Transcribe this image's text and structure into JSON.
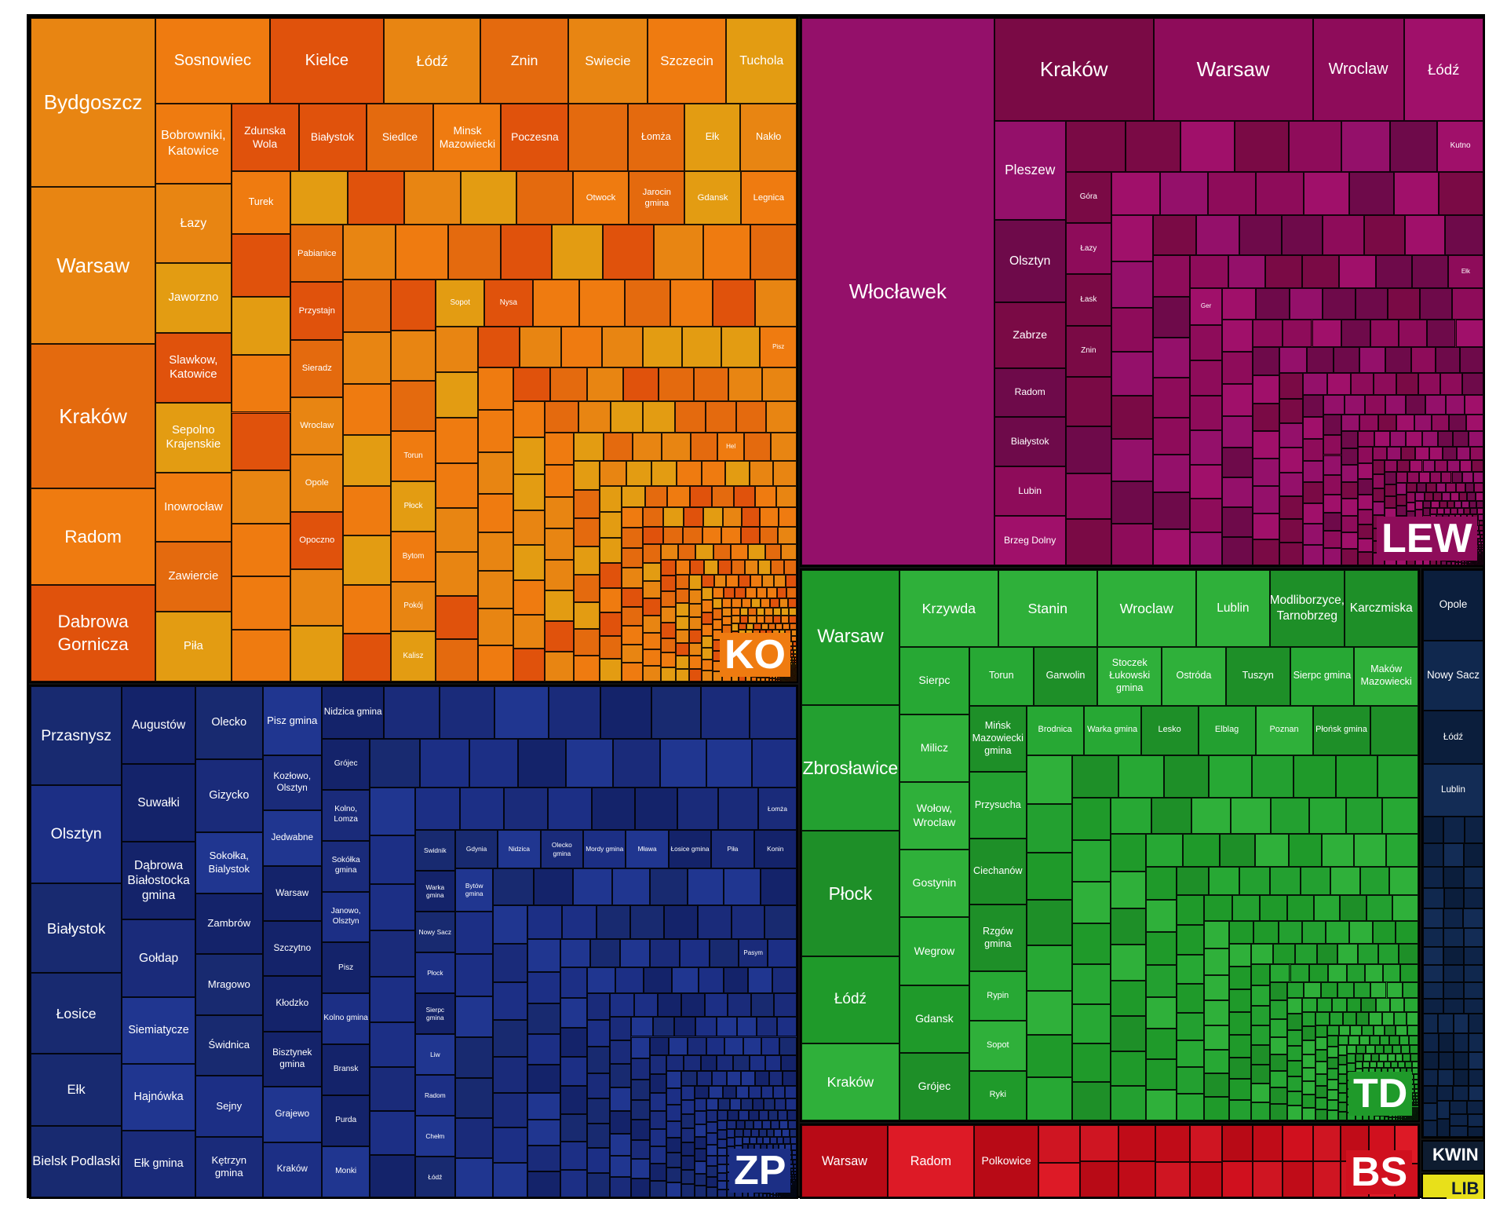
{
  "chart_data": {
    "type": "treemap",
    "title": "",
    "groups": [
      {
        "code": "KO",
        "colors": [
          "#e0520c",
          "#e46a0e",
          "#e88512",
          "#e39c12",
          "#ef7b10"
        ],
        "labels": [
          {
            "name": "Bydgoszcz",
            "size": 28
          },
          {
            "name": "Warsaw",
            "size": 26
          },
          {
            "name": "Kraków",
            "size": 24
          },
          {
            "name": "Radom",
            "size": 16
          },
          {
            "name": "Dabrowa Gornicza",
            "size": 16
          },
          {
            "name": "Sosnowiec",
            "size": 13
          },
          {
            "name": "Kielce",
            "size": 13
          },
          {
            "name": "Łódź",
            "size": 11
          },
          {
            "name": "Znin",
            "size": 10
          },
          {
            "name": "Swiecie",
            "size": 9
          },
          {
            "name": "Szczecin",
            "size": 9
          },
          {
            "name": "Tuchola",
            "size": 8
          },
          {
            "name": "Jaworzno",
            "size": 7
          },
          {
            "name": "Slawkow, Katowice",
            "size": 7
          },
          {
            "name": "Zdunska Wola",
            "size": 6
          },
          {
            "name": "Bobrowniki, Katowice",
            "size": 8
          },
          {
            "name": "Sepolno Krajenskie",
            "size": 7
          },
          {
            "name": "Białystok",
            "size": 6
          },
          {
            "name": "Siedlce",
            "size": 6
          },
          {
            "name": "Łomża",
            "size": 5
          },
          {
            "name": "Ełk",
            "size": 5
          },
          {
            "name": "Nakło",
            "size": 5
          },
          {
            "name": "Otwock",
            "size": 4
          },
          {
            "name": "Łazy",
            "size": 8
          },
          {
            "name": "Inowrocław",
            "size": 7
          },
          {
            "name": "Zawiercie",
            "size": 7
          },
          {
            "name": "Piła",
            "size": 7
          },
          {
            "name": "Minsk Mazowiecki",
            "size": 6
          },
          {
            "name": "Poczesna",
            "size": 6
          },
          {
            "name": "Turek",
            "size": 5
          },
          {
            "name": "Jarocin gmina",
            "size": 4
          },
          {
            "name": "Gdansk",
            "size": 4
          },
          {
            "name": "Legnica",
            "size": 4
          },
          {
            "name": "Pabianice",
            "size": 4
          },
          {
            "name": "Przystajn",
            "size": 4
          },
          {
            "name": "Sieradz",
            "size": 4
          },
          {
            "name": "Wroclaw",
            "size": 4
          },
          {
            "name": "Opole",
            "size": 4
          },
          {
            "name": "Opoczno",
            "size": 4
          },
          {
            "name": "Torun",
            "size": 3
          },
          {
            "name": "Płock",
            "size": 3
          },
          {
            "name": "Bytom",
            "size": 3
          },
          {
            "name": "Pokój",
            "size": 3
          },
          {
            "name": "Kalisz",
            "size": 3
          },
          {
            "name": "Sopot",
            "size": 3
          },
          {
            "name": "Nysa",
            "size": 3
          },
          {
            "name": "Pisz",
            "size": 2
          },
          {
            "name": "Hel",
            "size": 1
          }
        ]
      },
      {
        "code": "LEW",
        "colors": [
          "#7a0a45",
          "#8e0c5a",
          "#a0106a",
          "#6e0a4a",
          "#94106a"
        ],
        "labels": [
          {
            "name": "Włocławek",
            "size": 90
          },
          {
            "name": "Kraków",
            "size": 14
          },
          {
            "name": "Warsaw",
            "size": 14
          },
          {
            "name": "Wroclaw",
            "size": 8
          },
          {
            "name": "Łódź",
            "size": 7
          },
          {
            "name": "Pleszew",
            "size": 6
          },
          {
            "name": "Olsztyn",
            "size": 5
          },
          {
            "name": "Zabrze",
            "size": 4
          },
          {
            "name": "Radom",
            "size": 3
          },
          {
            "name": "Białystok",
            "size": 3
          },
          {
            "name": "Lubin",
            "size": 3
          },
          {
            "name": "Brzeg Dolny",
            "size": 3
          },
          {
            "name": "Kutno",
            "size": 2
          },
          {
            "name": "Góra",
            "size": 2
          },
          {
            "name": "Łazy",
            "size": 2
          },
          {
            "name": "Łask",
            "size": 2
          },
          {
            "name": "Znin",
            "size": 2
          },
          {
            "name": "Ełk",
            "size": 1
          },
          {
            "name": "Ger",
            "size": 1
          }
        ]
      },
      {
        "code": "ZP",
        "colors": [
          "#1a2b7a",
          "#1c2f85",
          "#182a70",
          "#203690",
          "#14236a"
        ],
        "labels": [
          {
            "name": "Przasnysz",
            "size": 11
          },
          {
            "name": "Olsztyn",
            "size": 11
          },
          {
            "name": "Białystok",
            "size": 10
          },
          {
            "name": "Łosice",
            "size": 9
          },
          {
            "name": "Ełk",
            "size": 8
          },
          {
            "name": "Bielsk Podlaski",
            "size": 8
          },
          {
            "name": "Augustów",
            "size": 7
          },
          {
            "name": "Suwałki",
            "size": 7
          },
          {
            "name": "Dąbrowa Białostocka gmina",
            "size": 7
          },
          {
            "name": "Gołdap",
            "size": 7
          },
          {
            "name": "Siemiatycze",
            "size": 6
          },
          {
            "name": "Hajnówka",
            "size": 6
          },
          {
            "name": "Ełk gmina",
            "size": 6
          },
          {
            "name": "Olecko",
            "size": 6
          },
          {
            "name": "Gizycko",
            "size": 6
          },
          {
            "name": "Sokołka, Bialystok",
            "size": 5
          },
          {
            "name": "Zambrów",
            "size": 5
          },
          {
            "name": "Mragowo",
            "size": 5
          },
          {
            "name": "Świdnica",
            "size": 5
          },
          {
            "name": "Sejny",
            "size": 5
          },
          {
            "name": "Kętrzyn gmina",
            "size": 5
          },
          {
            "name": "Pisz gmina",
            "size": 5
          },
          {
            "name": "Kozłowo, Olsztyn",
            "size": 4
          },
          {
            "name": "Jedwabne",
            "size": 4
          },
          {
            "name": "Warsaw",
            "size": 4
          },
          {
            "name": "Szczytno",
            "size": 4
          },
          {
            "name": "Kłodzko",
            "size": 4
          },
          {
            "name": "Bisztynek gmina",
            "size": 4
          },
          {
            "name": "Grajewo",
            "size": 4
          },
          {
            "name": "Kraków",
            "size": 4
          },
          {
            "name": "Nidzica gmina",
            "size": 4
          },
          {
            "name": "Grójec",
            "size": 3
          },
          {
            "name": "Kolno, Lomza",
            "size": 3
          },
          {
            "name": "Sokółka gmina",
            "size": 3
          },
          {
            "name": "Janowo, Olsztyn",
            "size": 3
          },
          {
            "name": "Pisz",
            "size": 3
          },
          {
            "name": "Kolno gmina",
            "size": 3
          },
          {
            "name": "Bransk",
            "size": 3
          },
          {
            "name": "Purda",
            "size": 3
          },
          {
            "name": "Monki",
            "size": 3
          },
          {
            "name": "Łomża",
            "size": 2
          },
          {
            "name": "Swidnik",
            "size": 2
          },
          {
            "name": "Warka gmina",
            "size": 2
          },
          {
            "name": "Nowy Sacz",
            "size": 2
          },
          {
            "name": "Płock",
            "size": 2
          },
          {
            "name": "Sierpc gmina",
            "size": 2
          },
          {
            "name": "Liw",
            "size": 2
          },
          {
            "name": "Radom",
            "size": 2
          },
          {
            "name": "Chełm",
            "size": 2
          },
          {
            "name": "Łódź",
            "size": 2
          },
          {
            "name": "Gdynia",
            "size": 2
          },
          {
            "name": "Nidzica",
            "size": 2
          },
          {
            "name": "Olecko gmina",
            "size": 2
          },
          {
            "name": "Mordy gmina",
            "size": 2
          },
          {
            "name": "Mława",
            "size": 2
          },
          {
            "name": "Łosice gmina",
            "size": 2
          },
          {
            "name": "Piła",
            "size": 2
          },
          {
            "name": "Konin",
            "size": 2
          },
          {
            "name": "Bytów gmina",
            "size": 2
          },
          {
            "name": "Pasym",
            "size": 1
          }
        ]
      },
      {
        "code": "TD",
        "colors": [
          "#1f9a2a",
          "#27a834",
          "#1e8f28",
          "#2fb03a",
          "#23a030"
        ],
        "labels": [
          {
            "name": "Warsaw",
            "size": 14
          },
          {
            "name": "Zbrosławice",
            "size": 13
          },
          {
            "name": "Płock",
            "size": 13
          },
          {
            "name": "Łódź",
            "size": 9
          },
          {
            "name": "Kraków",
            "size": 8
          },
          {
            "name": "Krzywda",
            "size": 8
          },
          {
            "name": "Stanin",
            "size": 8
          },
          {
            "name": "Wroclaw",
            "size": 8
          },
          {
            "name": "Lublin",
            "size": 6
          },
          {
            "name": "Modliborzyce, Tarnobrzeg",
            "size": 6
          },
          {
            "name": "Karczmiska",
            "size": 6
          },
          {
            "name": "Sierpc",
            "size": 5
          },
          {
            "name": "Milicz",
            "size": 5
          },
          {
            "name": "Wołow, Wroclaw",
            "size": 5
          },
          {
            "name": "Gostynin",
            "size": 5
          },
          {
            "name": "Torun",
            "size": 4
          },
          {
            "name": "Garwolin",
            "size": 4
          },
          {
            "name": "Stoczek Łukowski gmina",
            "size": 4
          },
          {
            "name": "Ostróda",
            "size": 4
          },
          {
            "name": "Tuszyn",
            "size": 4
          },
          {
            "name": "Wegrow",
            "size": 5
          },
          {
            "name": "Sierpc gmina",
            "size": 4
          },
          {
            "name": "Gdansk",
            "size": 5
          },
          {
            "name": "Rypin",
            "size": 3
          },
          {
            "name": "Sopot",
            "size": 3
          },
          {
            "name": "Ryki",
            "size": 3
          },
          {
            "name": "Maków Mazowiecki",
            "size": 4
          },
          {
            "name": "Brodnica",
            "size": 3
          },
          {
            "name": "Warka gmina",
            "size": 3
          },
          {
            "name": "Lesko",
            "size": 3
          },
          {
            "name": "Grójec",
            "size": 5
          },
          {
            "name": "Elblag",
            "size": 3
          },
          {
            "name": "Mińsk Mazowiecki gmina",
            "size": 4
          },
          {
            "name": "Poznan",
            "size": 3
          },
          {
            "name": "Przysucha",
            "size": 4
          },
          {
            "name": "Ciechanów",
            "size": 4
          },
          {
            "name": "Rzgów gmina",
            "size": 4
          },
          {
            "name": "Płońsk gmina",
            "size": 3
          }
        ]
      },
      {
        "code": "BS",
        "colors": [
          "#d0101e",
          "#c00c18",
          "#dd1a26",
          "#b80a16",
          "#cf1522"
        ],
        "labels": [
          {
            "name": "Warsaw",
            "size": 4
          },
          {
            "name": "Radom",
            "size": 4
          },
          {
            "name": "Polkowice",
            "size": 3
          }
        ]
      },
      {
        "code": "",
        "colors": [
          "#0d2244",
          "#10284e",
          "#0b1e3c",
          "#132c55",
          "#0e2448"
        ],
        "labels": [
          {
            "name": "Opole",
            "size": 4
          },
          {
            "name": "Nowy Sacz",
            "size": 4
          },
          {
            "name": "Łódź",
            "size": 3
          },
          {
            "name": "Lublin",
            "size": 3
          }
        ]
      },
      {
        "code": "KWIN",
        "colors": [
          "#0e1c30"
        ],
        "labels": []
      },
      {
        "code": "LIB",
        "colors": [
          "#e8e01a"
        ],
        "labels": []
      }
    ]
  },
  "tags": {
    "KO": {
      "text": "KO",
      "bg": "#ef7b10"
    },
    "LEW": {
      "text": "LEW",
      "bg": "#8e0c5a"
    },
    "ZP": {
      "text": "ZP",
      "bg": "#1c2f85"
    },
    "TD": {
      "text": "TD",
      "bg": "#1f9a2a"
    },
    "BS": {
      "text": "BS",
      "bg": "#d0101e"
    },
    "KWIN": {
      "text": "KWIN",
      "bg": "#0e1c30"
    },
    "LIB": {
      "text": "LIB",
      "bg": "#e8e01a"
    }
  }
}
